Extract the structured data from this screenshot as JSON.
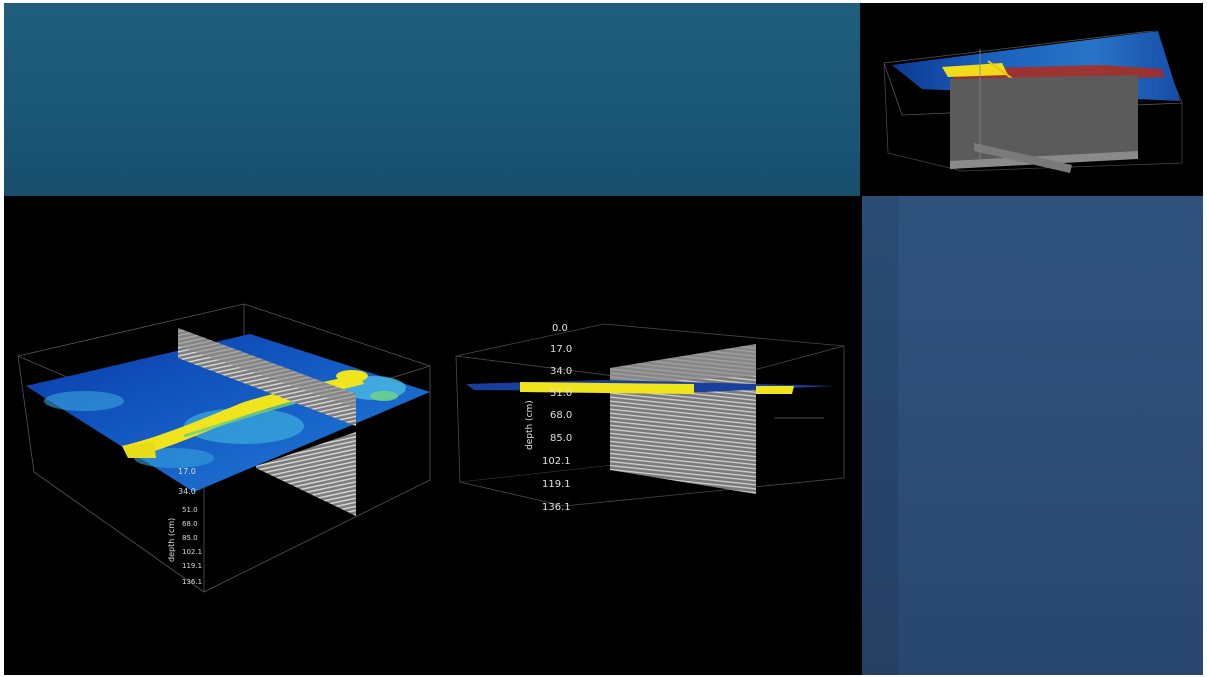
{
  "views": {
    "left": {
      "depth_label": "depth (cm)",
      "depth_ticks": [
        "17.0",
        "34.0",
        "51.0",
        "68.0",
        "85.0",
        "102.1",
        "119.1",
        "136.1"
      ]
    },
    "center": {
      "depth_label": "depth (cm)",
      "depth_ticks": [
        "0.0",
        "17.0",
        "34.0",
        "51.0",
        "68.0",
        "85.0",
        "102.1",
        "119.1",
        "136.1"
      ]
    }
  },
  "colors": {
    "banner": "#1f5e7d",
    "side_panel": "#2f527d",
    "slice_high": "#f2e51e",
    "slice_mid": "#3fb0d8",
    "slice_low": "#0b3fb0",
    "radargram": "#9a9a9a"
  }
}
